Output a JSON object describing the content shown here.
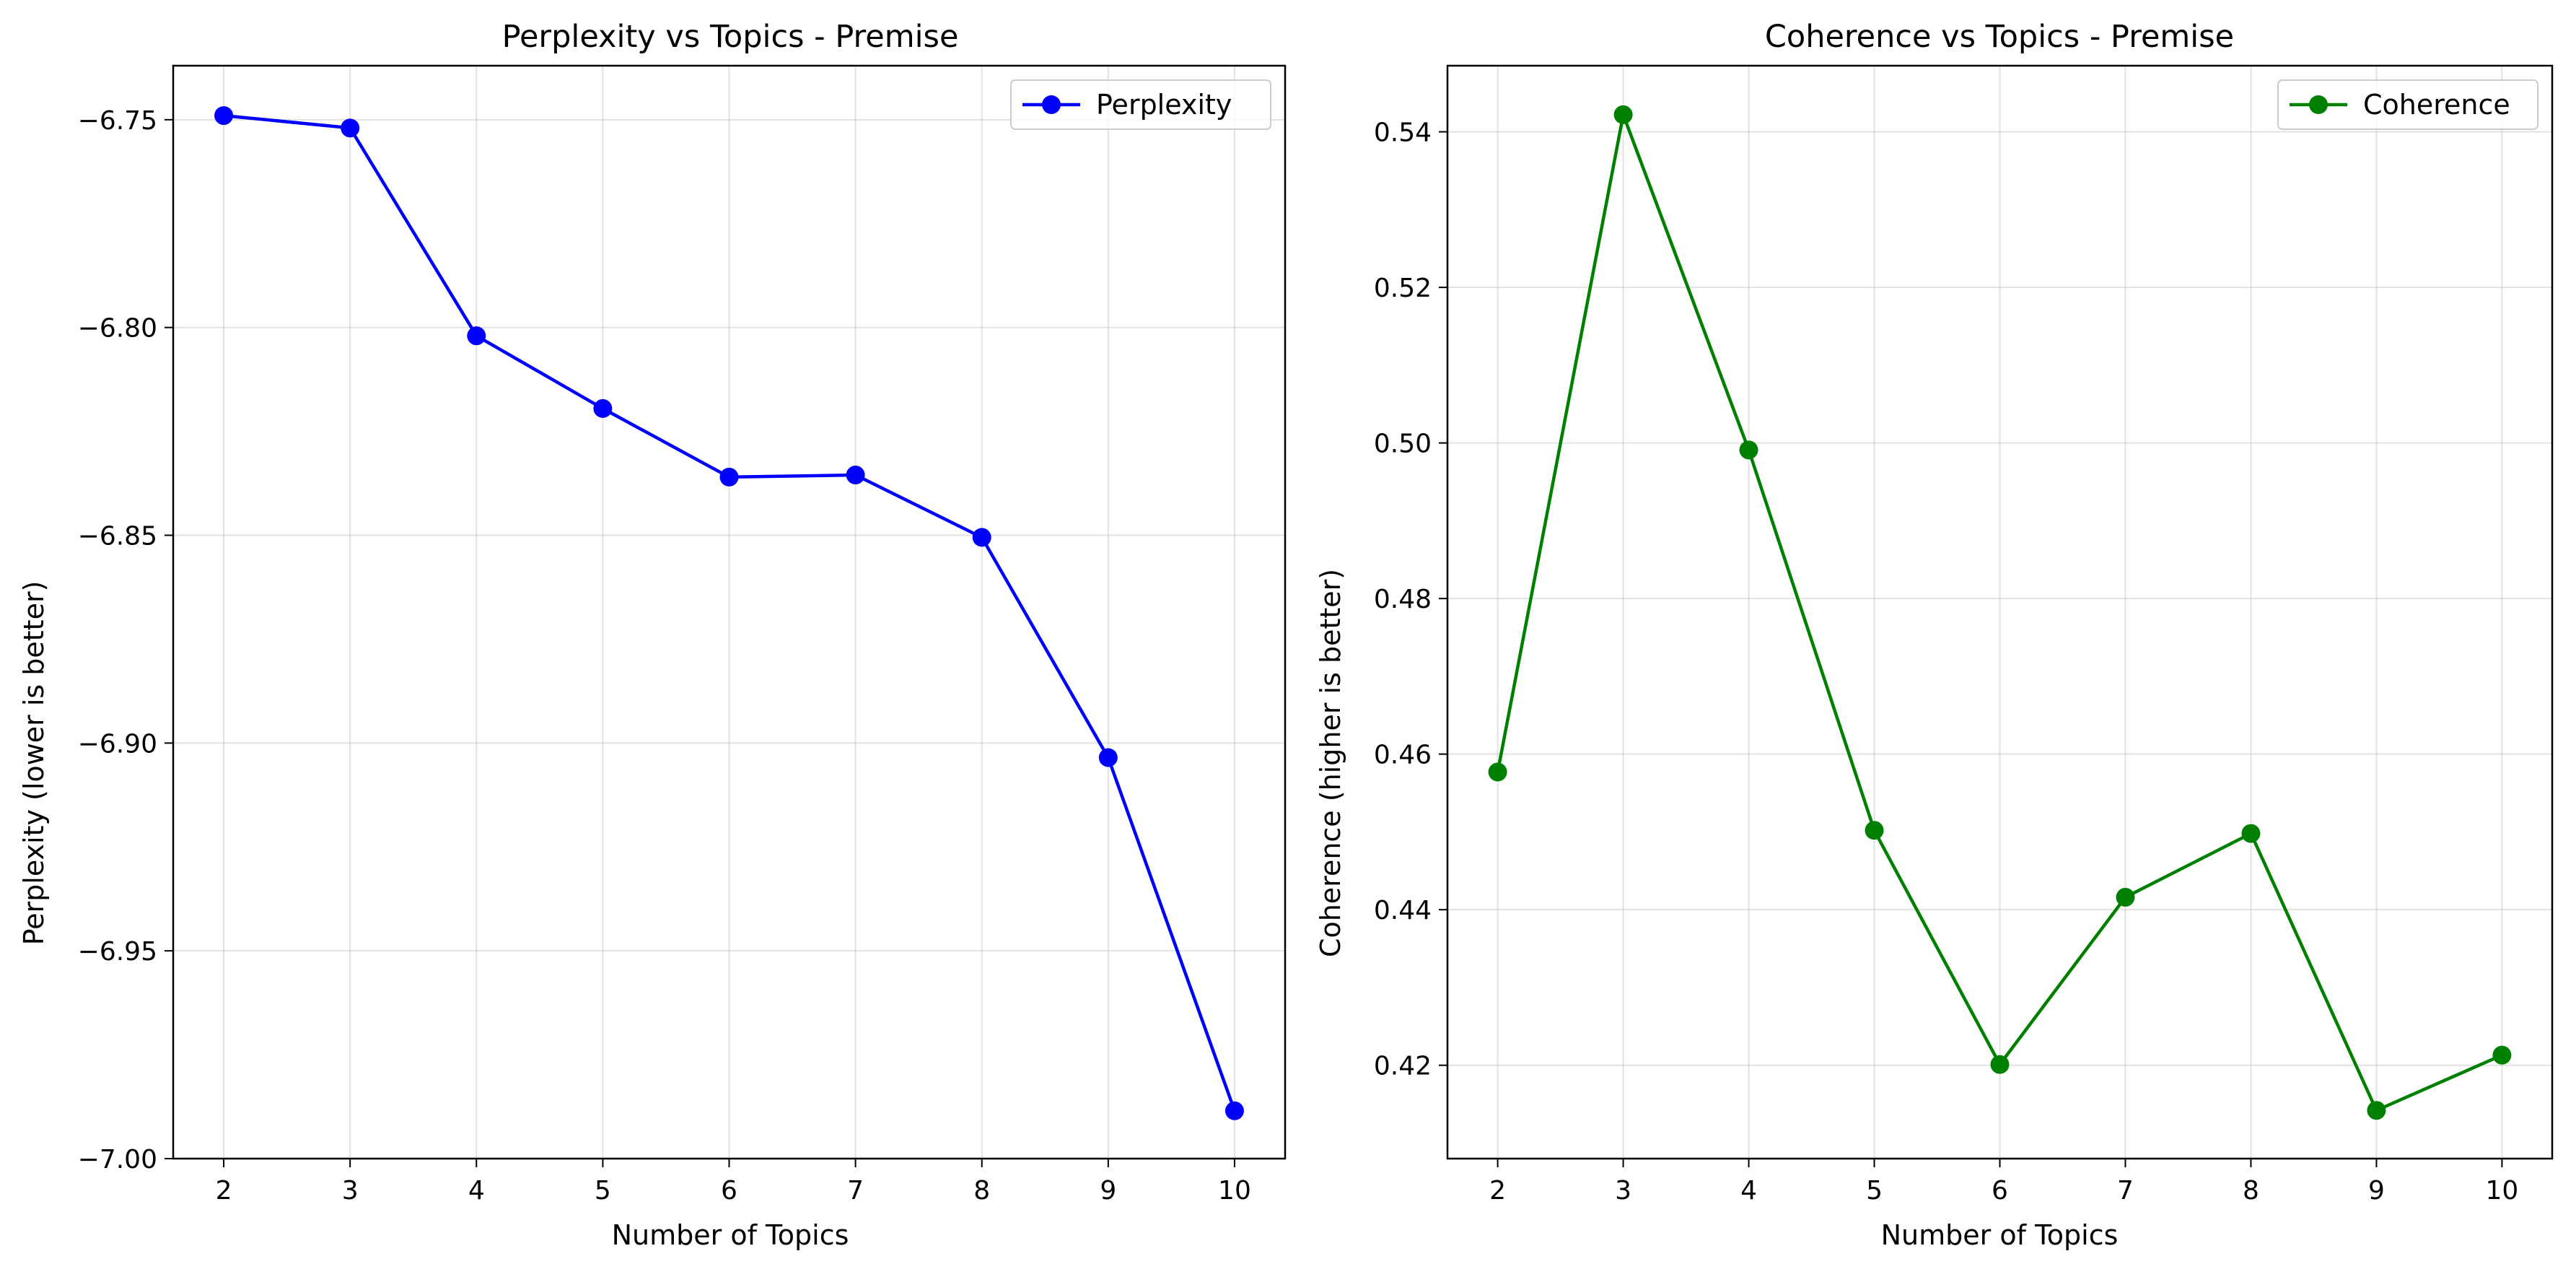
{
  "chart_data": [
    {
      "type": "line",
      "title": "Perplexity vs Topics - Premise",
      "xlabel": "Number of Topics",
      "ylabel": "Perplexity (lower is better)",
      "x": [
        2,
        3,
        4,
        5,
        6,
        7,
        8,
        9,
        10
      ],
      "xticks": [
        "2",
        "3",
        "4",
        "5",
        "6",
        "7",
        "8",
        "9",
        "10"
      ],
      "yticks": [
        "−6.75",
        "−6.80",
        "−6.85",
        "−6.90",
        "−6.95",
        "−7.00"
      ],
      "ytick_values": [
        -6.75,
        -6.8,
        -6.85,
        -6.9,
        -6.95,
        -7.0
      ],
      "xlim": [
        1.6,
        10.4
      ],
      "ylim": [
        -7.0,
        -6.737
      ],
      "grid": true,
      "legend_position": "top-right",
      "series": [
        {
          "name": "Perplexity",
          "color": "#0000ff",
          "marker": "circle",
          "values": [
            -6.749,
            -6.752,
            -6.802,
            -6.8195,
            -6.836,
            -6.8355,
            -6.8505,
            -6.9035,
            -6.9885
          ]
        }
      ]
    },
    {
      "type": "line",
      "title": "Coherence vs Topics - Premise",
      "xlabel": "Number of Topics",
      "ylabel": "Coherence (higher is better)",
      "x": [
        2,
        3,
        4,
        5,
        6,
        7,
        8,
        9,
        10
      ],
      "xticks": [
        "2",
        "3",
        "4",
        "5",
        "6",
        "7",
        "8",
        "9",
        "10"
      ],
      "yticks": [
        "0.42",
        "0.44",
        "0.46",
        "0.48",
        "0.50",
        "0.52",
        "0.54"
      ],
      "ytick_values": [
        0.42,
        0.44,
        0.46,
        0.48,
        0.5,
        0.52,
        0.54
      ],
      "xlim": [
        1.6,
        10.4
      ],
      "ylim": [
        0.408,
        0.5485
      ],
      "grid": true,
      "legend_position": "top-right",
      "series": [
        {
          "name": "Coherence",
          "color": "#008000",
          "marker": "circle",
          "values": [
            0.4577,
            0.5422,
            0.4991,
            0.4502,
            0.4201,
            0.4416,
            0.4498,
            0.4142,
            0.4213
          ]
        }
      ]
    }
  ]
}
